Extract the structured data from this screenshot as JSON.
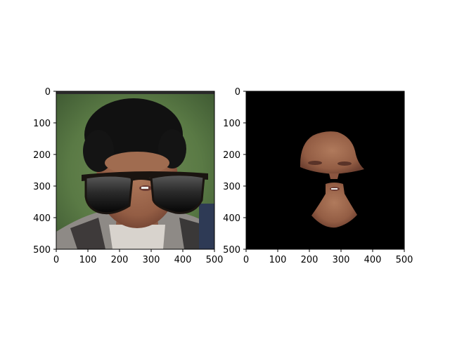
{
  "figure": {
    "background": "#ffffff",
    "panels": [
      {
        "id": "left",
        "image": "photo of a person with curly dark hair wearing overlaid black sunglasses",
        "x_ticks": [
          "0",
          "100",
          "200",
          "300",
          "400",
          "500"
        ],
        "y_ticks": [
          "0",
          "100",
          "200",
          "300",
          "400",
          "500"
        ],
        "xlim": [
          0,
          500
        ],
        "ylim": [
          500,
          0
        ]
      },
      {
        "id": "right",
        "image": "face skin mask on black background with the sunglasses region removed",
        "x_ticks": [
          "0",
          "100",
          "200",
          "300",
          "400",
          "500"
        ],
        "y_ticks": [
          "0",
          "100",
          "200",
          "300",
          "400",
          "500"
        ],
        "xlim": [
          0,
          500
        ],
        "ylim": [
          500,
          0
        ],
        "background": "#000000"
      }
    ]
  }
}
